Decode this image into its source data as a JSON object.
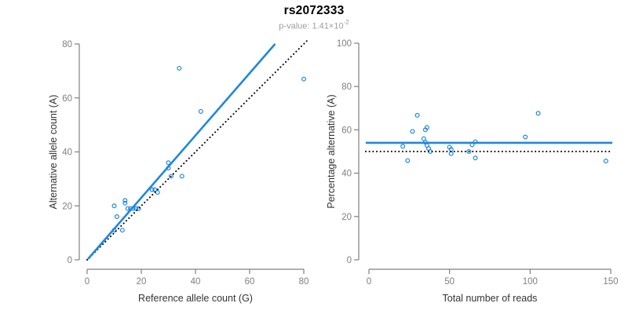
{
  "header": {
    "title": "rs2072333",
    "subtitle_prefix": "p-value: 1.41×10",
    "subtitle_exponent": "-2"
  },
  "colors": {
    "accent": "#1E87E0",
    "axis": "#808080",
    "tick_label": "#7F7F7F",
    "axis_title": "#333333",
    "dotted": "#000000",
    "background": "#FFFFFF"
  },
  "chart_data": [
    {
      "id": "ref-vs-alt",
      "type": "scatter",
      "title": "",
      "xlabel": "Reference allele count (G)",
      "ylabel": "Alternative allele count (A)",
      "xlim": [
        0,
        84
      ],
      "ylim": [
        0,
        81.5
      ],
      "xticks": [
        0,
        20,
        40,
        60,
        80
      ],
      "yticks": [
        0,
        20,
        40,
        60,
        80
      ],
      "grid": false,
      "marker": "open-circle",
      "points": [
        [
          10,
          20
        ],
        [
          14,
          22
        ],
        [
          14,
          21
        ],
        [
          15,
          19
        ],
        [
          16,
          19
        ],
        [
          17,
          19
        ],
        [
          18,
          19
        ],
        [
          19,
          19
        ],
        [
          11,
          16
        ],
        [
          13,
          11
        ],
        [
          10,
          11
        ],
        [
          24,
          26
        ],
        [
          25,
          26
        ],
        [
          26,
          25
        ],
        [
          30,
          36
        ],
        [
          30,
          34
        ],
        [
          31,
          31
        ],
        [
          35,
          31
        ],
        [
          42,
          55
        ],
        [
          34,
          71
        ],
        [
          80,
          67
        ]
      ],
      "lines": [
        {
          "name": "identity-line",
          "style": "dotted",
          "color_key": "dotted",
          "x1": 0,
          "y1": 0,
          "x2": 81.5,
          "y2": 81.5
        },
        {
          "name": "regression-line",
          "style": "solid",
          "color_key": "accent",
          "x1": 0.3,
          "y1": 0.3,
          "x2": 69.4,
          "y2": 80
        }
      ]
    },
    {
      "id": "reads-vs-percentage",
      "type": "scatter",
      "title": "",
      "xlabel": "Total number of reads",
      "ylabel": "Percentage alternative (A)",
      "xlim": [
        0,
        152
      ],
      "ylim": [
        0,
        100
      ],
      "xticks": [
        0,
        50,
        100,
        150
      ],
      "yticks": [
        0,
        20,
        40,
        60,
        80,
        100
      ],
      "grid": false,
      "marker": "open-circle",
      "points": [
        [
          30,
          66.7
        ],
        [
          36,
          61.1
        ],
        [
          35,
          60
        ],
        [
          34,
          55.9
        ],
        [
          35,
          54.3
        ],
        [
          36,
          52.8
        ],
        [
          37,
          51.4
        ],
        [
          38,
          50
        ],
        [
          27,
          59.3
        ],
        [
          24,
          45.8
        ],
        [
          21,
          52.4
        ],
        [
          50,
          52
        ],
        [
          51,
          51
        ],
        [
          51,
          49
        ],
        [
          66,
          54.5
        ],
        [
          64,
          53.1
        ],
        [
          62,
          50
        ],
        [
          66,
          47
        ],
        [
          97,
          56.7
        ],
        [
          105,
          67.6
        ],
        [
          147,
          45.6
        ]
      ],
      "lines": [
        {
          "name": "expected-percentage-line",
          "style": "dotted",
          "color_key": "dotted",
          "x1": -2,
          "y1": 50,
          "x2": 151,
          "y2": 50
        },
        {
          "name": "mean-percentage-line",
          "style": "solid",
          "color_key": "accent",
          "x1": -2,
          "y1": 54,
          "x2": 151,
          "y2": 54
        }
      ]
    }
  ]
}
